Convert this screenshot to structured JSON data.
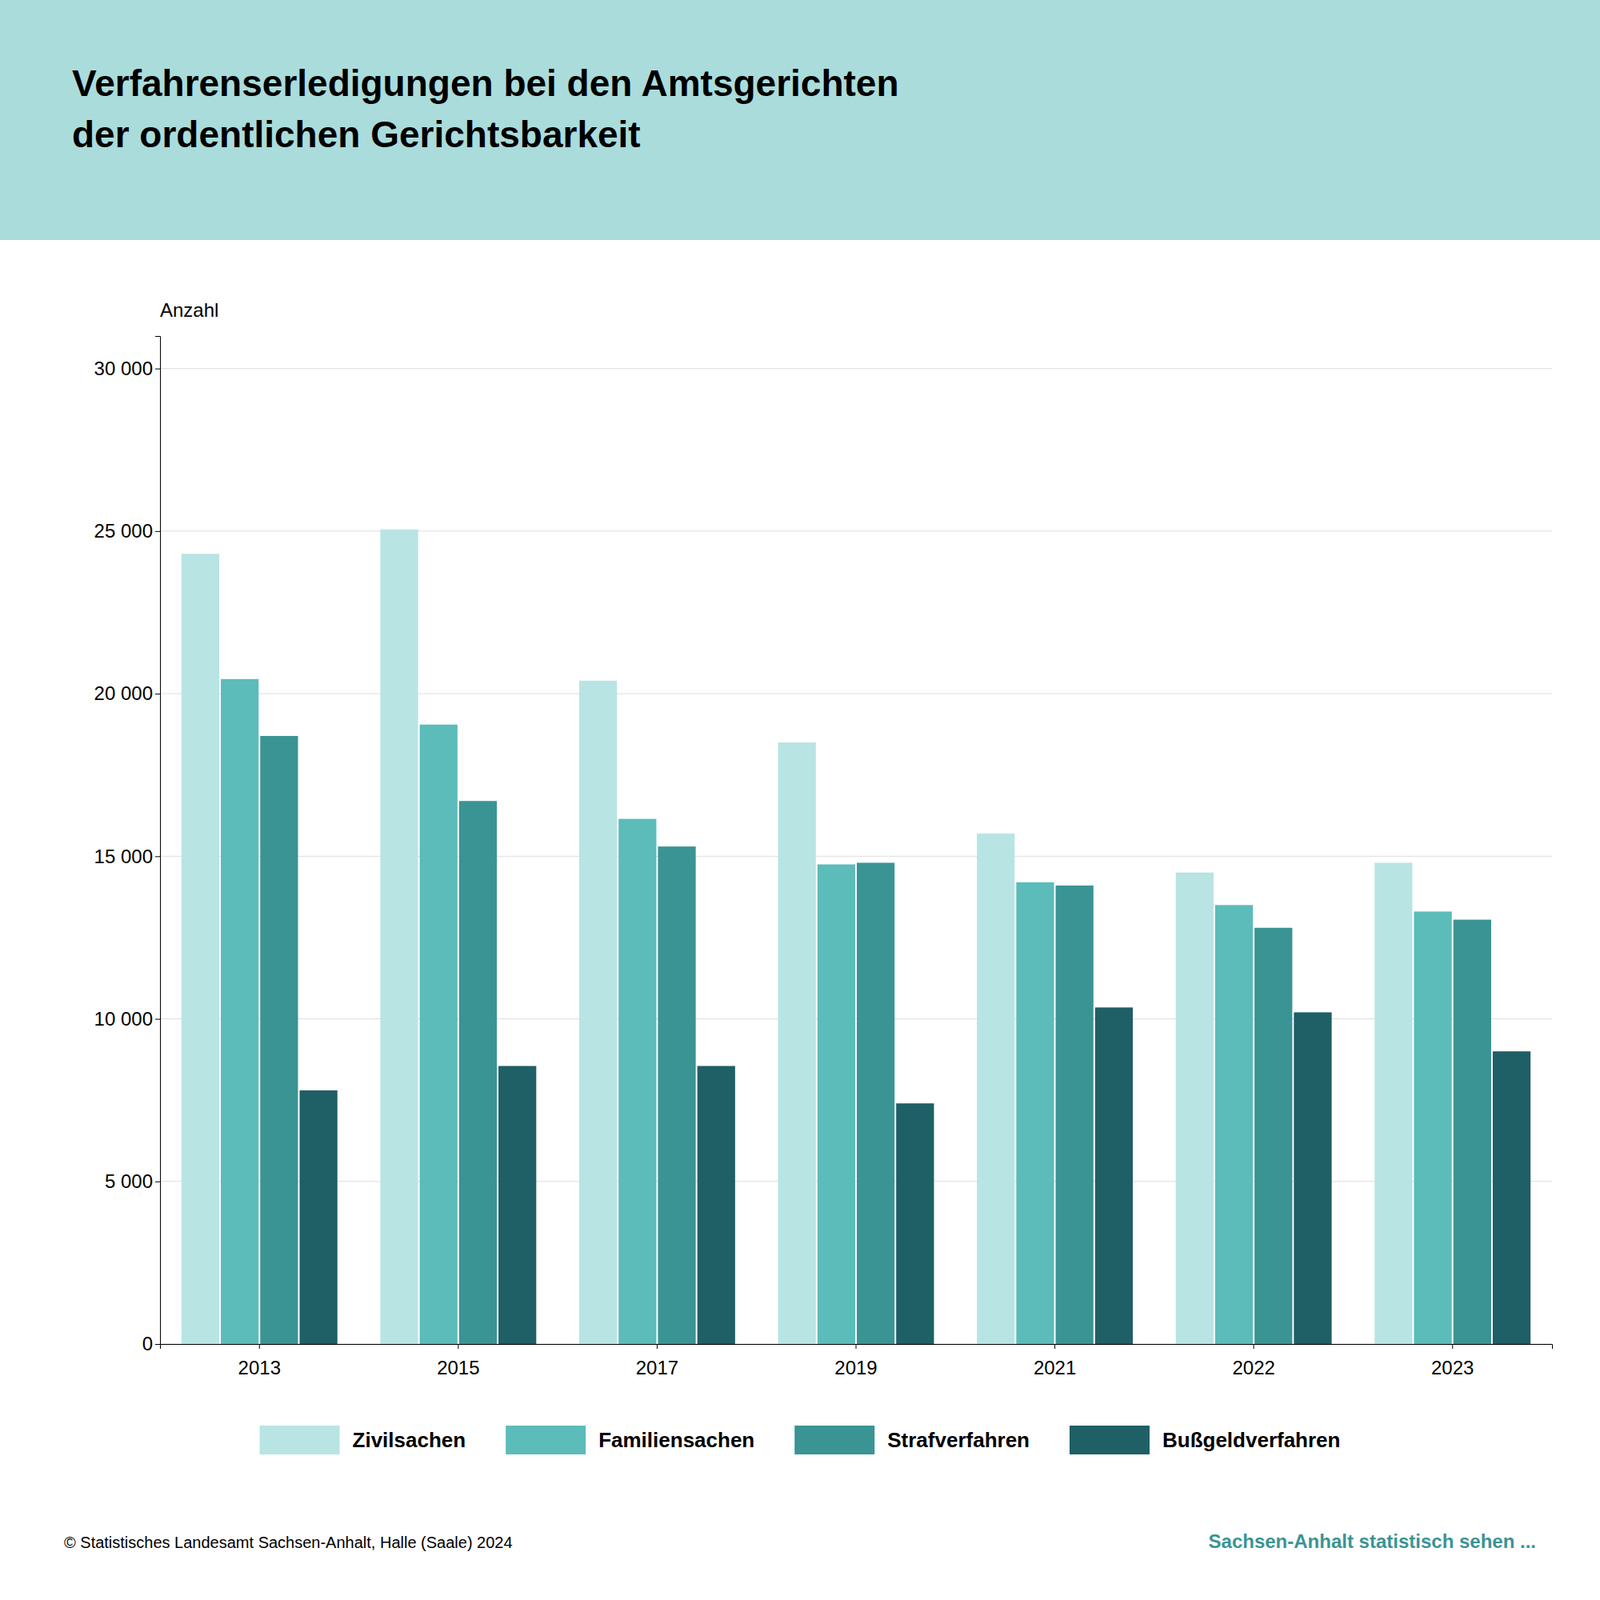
{
  "chart_data": {
    "type": "bar",
    "title": "Verfahrenserledigungen bei den Amtsgerichten\nder ordentlichen Gerichtsbarkeit",
    "y_label": "Anzahl",
    "categories": [
      "2013",
      "2015",
      "2017",
      "2019",
      "2021",
      "2022",
      "2023"
    ],
    "series": [
      {
        "name": "Zivilsachen",
        "color": "#b8e4e4",
        "values": [
          24300,
          25050,
          20400,
          18500,
          15700,
          14500,
          14800
        ]
      },
      {
        "name": "Familiensachen",
        "color": "#5bbcba",
        "values": [
          20450,
          19050,
          16150,
          14750,
          14200,
          13500,
          13300
        ]
      },
      {
        "name": "Strafverfahren",
        "color": "#3a9494",
        "values": [
          18700,
          16700,
          15300,
          14800,
          14100,
          12800,
          13050
        ]
      },
      {
        "name": "Bußgeldverfahren",
        "color": "#1f5f66",
        "values": [
          7800,
          8550,
          8550,
          7400,
          10350,
          10200,
          9000
        ]
      }
    ],
    "ylim": [
      0,
      31000
    ],
    "yticks": [
      0,
      {
        "value": 5000,
        "label": "5 000"
      },
      {
        "value": 10000,
        "label": "10 000"
      },
      {
        "value": 15000,
        "label": "15 000"
      },
      {
        "value": 20000,
        "label": "20 000"
      },
      {
        "value": 25000,
        "label": "25 000"
      },
      {
        "value": 30000,
        "label": "30 000"
      }
    ],
    "grid": true,
    "legend": "bottom",
    "annotations": [
      "© Statistisches Landesamt Sachsen-Anhalt, Halle (Saale) 2024",
      "Sachsen-Anhalt statistisch sehen ..."
    ]
  }
}
